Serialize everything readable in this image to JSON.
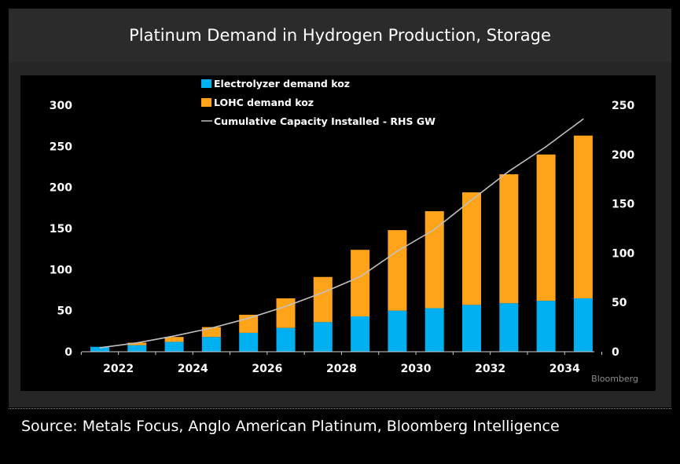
{
  "title": "Platinum Demand in Hydrogen Production, Storage",
  "source": "Source: Metals Focus, Anglo American Platinum, Bloomberg Intelligence",
  "watermark": "Bloomberg",
  "colors": {
    "electrolyzer": "#00b0f0",
    "lohc": "#ffa31a",
    "cumulative": "#c0c0c0",
    "background": "#000000",
    "text": "#ffffff"
  },
  "chart_data": {
    "type": "bar",
    "stacked": true,
    "title": "Platinum Demand in Hydrogen Production, Storage",
    "xlabel": "",
    "ylabel": "",
    "y2label": "",
    "categories": [
      "2022",
      "2023",
      "2024",
      "2025",
      "2026",
      "2027",
      "2028",
      "2029",
      "2030",
      "2031",
      "2032",
      "2033",
      "2034",
      "2035"
    ],
    "x_tick_labels": [
      "2022",
      "2024",
      "2026",
      "2028",
      "2030",
      "2032",
      "2034"
    ],
    "ylim": [
      0,
      300
    ],
    "y_ticks": [
      "0",
      "50",
      "100",
      "150",
      "200",
      "250",
      "300"
    ],
    "y2lim": [
      0,
      250
    ],
    "y2_ticks": [
      "0",
      "50",
      "100",
      "150",
      "200",
      "250"
    ],
    "legend_position": "top-center",
    "grid": false,
    "series": [
      {
        "name": "Electrolyzer demand koz",
        "type": "bar",
        "axis": "left",
        "values": [
          6,
          8,
          12,
          18,
          23,
          29,
          36,
          43,
          50,
          53,
          57,
          59,
          62,
          65
        ]
      },
      {
        "name": "LOHC demand koz",
        "type": "bar",
        "axis": "left",
        "values": [
          0,
          3,
          6,
          12,
          22,
          36,
          55,
          81,
          98,
          118,
          137,
          157,
          178,
          198
        ]
      },
      {
        "name": "Cumulative Capacity Installed - RHS GW",
        "type": "line",
        "axis": "right",
        "values": [
          4,
          9,
          16,
          24,
          34,
          46,
          60,
          76,
          102,
          124,
          154,
          183,
          208,
          236
        ]
      }
    ]
  }
}
